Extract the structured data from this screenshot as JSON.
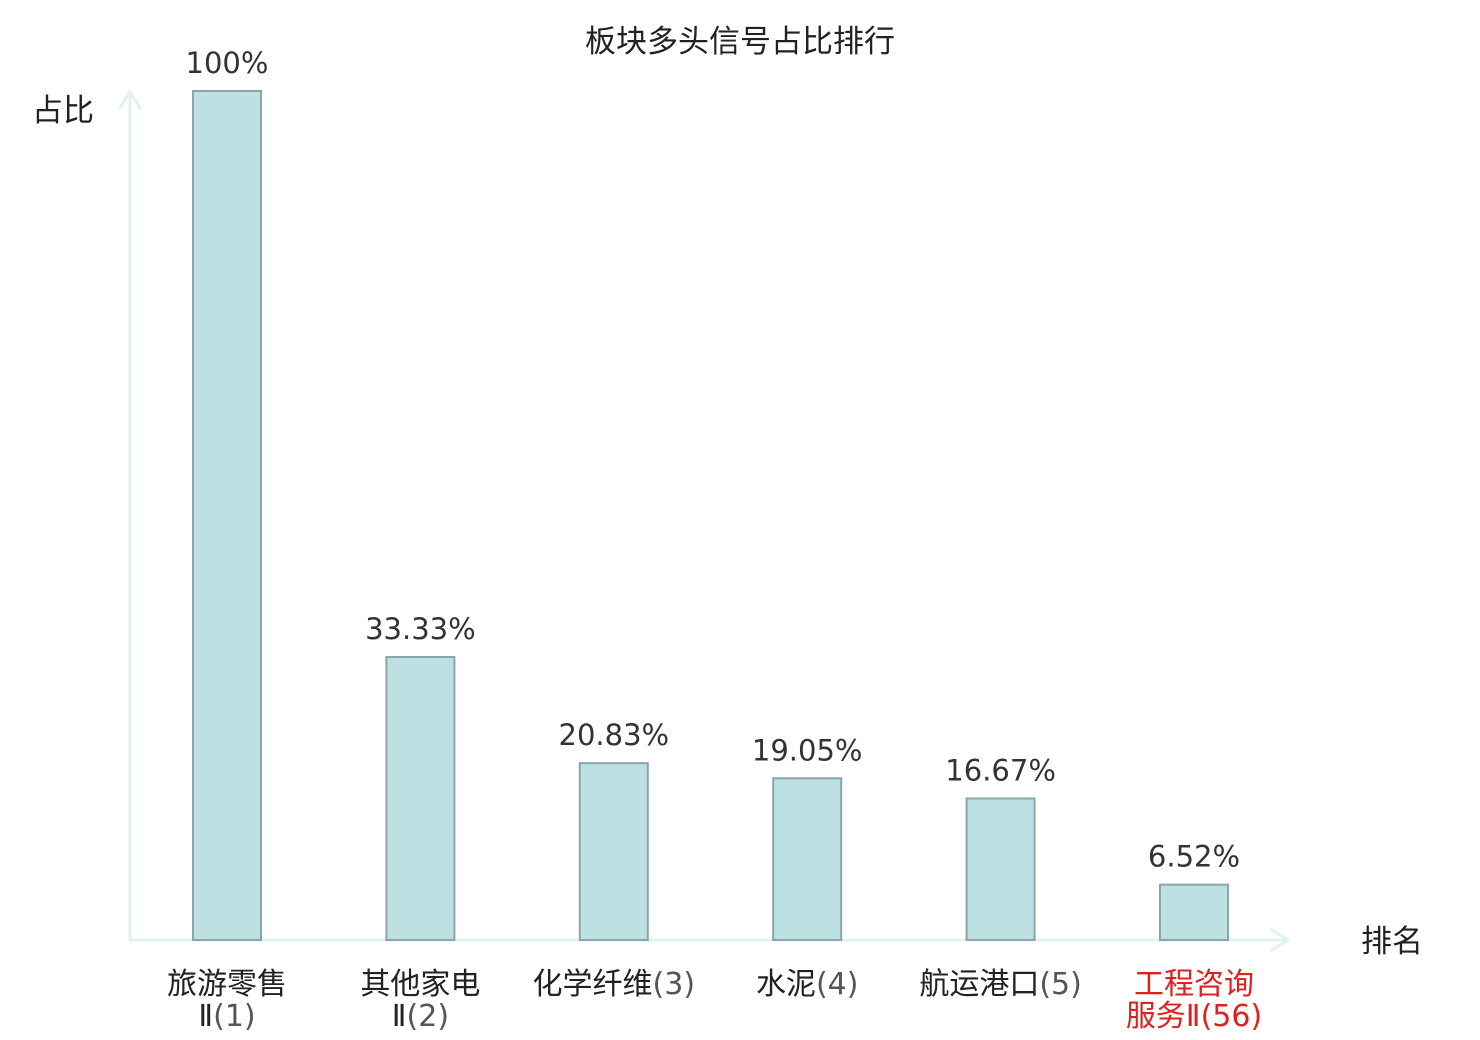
{
  "colors": {
    "bar_fill": "#bde0e3",
    "bar_stroke": "#8aa5ab",
    "axis": "#e2f2f0",
    "text": "#333333",
    "label_normal": "#222222",
    "label_rank_normal": "#555555",
    "highlight": "#e02020"
  },
  "chart_data": {
    "type": "bar",
    "title": "板块多头信号占比排行",
    "xlabel": "排名",
    "ylabel": "占比",
    "ylim": [
      0,
      100
    ],
    "grid": false,
    "legend": "none",
    "categories": [
      {
        "name_lines": [
          "旅游零售",
          "Ⅱ"
        ],
        "rank": "(1)",
        "highlight": false
      },
      {
        "name_lines": [
          "其他家电",
          "Ⅱ"
        ],
        "rank": "(2)",
        "highlight": false
      },
      {
        "name_lines": [
          "化学纤维"
        ],
        "rank": "(3)",
        "highlight": false
      },
      {
        "name_lines": [
          "水泥"
        ],
        "rank": "(4)",
        "highlight": false
      },
      {
        "name_lines": [
          "航运港口"
        ],
        "rank": "(5)",
        "highlight": false
      },
      {
        "name_lines": [
          "工程咨询",
          "服务Ⅱ"
        ],
        "rank": "(56)",
        "highlight": true
      }
    ],
    "values": [
      100,
      33.33,
      20.83,
      19.05,
      16.67,
      6.52
    ],
    "value_labels": [
      "100%",
      "33.33%",
      "20.83%",
      "19.05%",
      "16.67%",
      "6.52%"
    ]
  }
}
